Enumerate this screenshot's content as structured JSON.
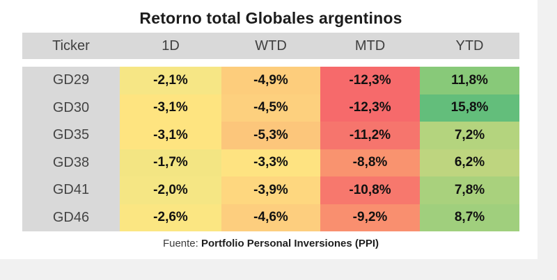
{
  "title": "Retorno total Globales argentinos",
  "headers": [
    "Ticker",
    "1D",
    "WTD",
    "MTD",
    "YTD"
  ],
  "rows": [
    {
      "ticker": "GD29",
      "values": [
        "-2,1%",
        "-4,9%",
        "-12,3%",
        "11,8%"
      ],
      "colors": [
        "#f6e685",
        "#fdcd7c",
        "#f66a6b",
        "#88c979"
      ]
    },
    {
      "ticker": "GD30",
      "values": [
        "-3,1%",
        "-4,5%",
        "-12,3%",
        "15,8%"
      ],
      "colors": [
        "#fee480",
        "#fdd07e",
        "#f66a6b",
        "#63be7b"
      ]
    },
    {
      "ticker": "GD35",
      "values": [
        "-3,1%",
        "-5,3%",
        "-11,2%",
        "7,2%"
      ],
      "colors": [
        "#fee480",
        "#fcc67b",
        "#f6756d",
        "#b4d47e"
      ]
    },
    {
      "ticker": "GD38",
      "values": [
        "-1,7%",
        "-3,3%",
        "-8,8%",
        "6,2%"
      ],
      "colors": [
        "#f3e583",
        "#fee381",
        "#f9936f",
        "#bed57f"
      ]
    },
    {
      "ticker": "GD41",
      "values": [
        "-2,0%",
        "-3,9%",
        "-10,8%",
        "7,8%"
      ],
      "colors": [
        "#f5e684",
        "#fed77f",
        "#f7786d",
        "#a9d17d"
      ]
    },
    {
      "ticker": "GD46",
      "values": [
        "-2,6%",
        "-4,6%",
        "-9,2%",
        "8,7%"
      ],
      "colors": [
        "#fbe682",
        "#fdce7e",
        "#f98f6f",
        "#a0cf7d"
      ]
    }
  ],
  "source": {
    "prefix": "Fuente:",
    "name": "Portfolio Personal Inversiones (PPI)"
  }
}
